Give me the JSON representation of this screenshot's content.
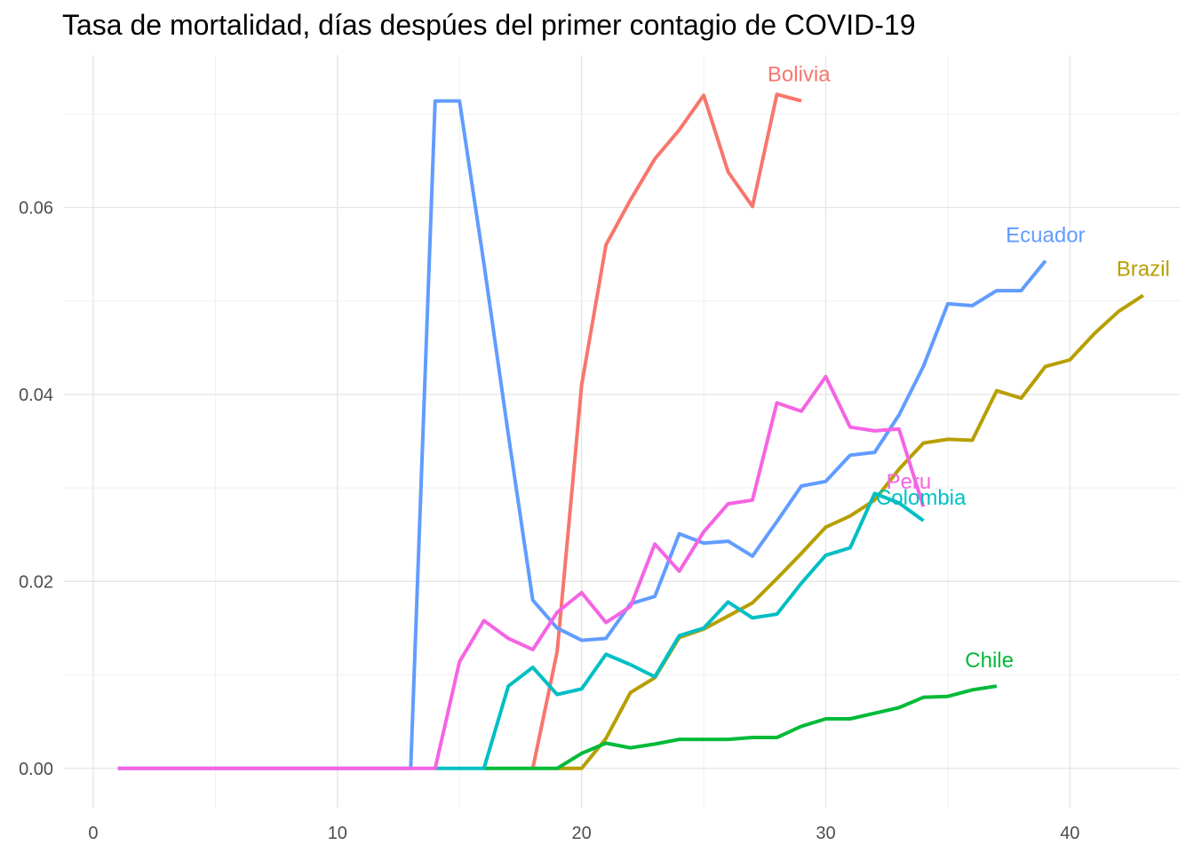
{
  "chart_data": {
    "type": "line",
    "title": "Tasa de mortalidad, días despúes del primer contagio de COVID-19",
    "xlabel": "",
    "ylabel": "",
    "xlim": [
      -1.2,
      44.5
    ],
    "ylim": [
      -0.0043,
      0.0763
    ],
    "x_ticks": [
      0,
      10,
      20,
      30,
      40
    ],
    "x_tick_labels": [
      "0",
      "10",
      "20",
      "30",
      "40"
    ],
    "y_ticks": [
      0.0,
      0.02,
      0.04,
      0.06
    ],
    "y_tick_labels": [
      "0.00",
      "0.02",
      "0.04",
      "0.06"
    ],
    "grid": true,
    "legend": "none (direct labels at line ends)",
    "series": [
      {
        "name": "Bolivia",
        "color": "#F8766D",
        "x": [
          18,
          19,
          20,
          21,
          22,
          23,
          24,
          25,
          26,
          27,
          28,
          29
        ],
        "y": [
          0.0,
          0.0125,
          0.041,
          0.056,
          0.0608,
          0.0652,
          0.0683,
          0.072,
          0.0638,
          0.0601,
          0.0721,
          0.0714
        ],
        "label_x": 28.9,
        "label_y": 0.0735
      },
      {
        "name": "Brazil",
        "color": "#B79F00",
        "x": [
          19,
          20,
          21,
          22,
          23,
          24,
          25,
          26,
          27,
          28,
          29,
          30,
          31,
          32,
          33,
          34,
          35,
          36,
          37,
          38,
          39,
          40,
          41,
          42,
          43
        ],
        "y": [
          0.0,
          0.0,
          0.0032,
          0.0081,
          0.0097,
          0.014,
          0.0149,
          0.0163,
          0.0177,
          0.0203,
          0.023,
          0.0258,
          0.027,
          0.0287,
          0.032,
          0.0348,
          0.0352,
          0.0351,
          0.0404,
          0.0396,
          0.043,
          0.0437,
          0.0465,
          0.0489,
          0.0506
        ],
        "label_x": 43.0,
        "label_y": 0.0527
      },
      {
        "name": "Chile",
        "color": "#00BA38",
        "x": [
          16,
          17,
          18,
          19,
          20,
          21,
          22,
          23,
          24,
          25,
          26,
          27,
          28,
          29,
          30,
          31,
          32,
          33,
          34,
          35,
          36,
          37
        ],
        "y": [
          0.0,
          0.0,
          0.0,
          0.0,
          0.0016,
          0.0027,
          0.0022,
          0.0026,
          0.0031,
          0.0031,
          0.0031,
          0.0033,
          0.0033,
          0.0045,
          0.0053,
          0.0053,
          0.0059,
          0.0065,
          0.0076,
          0.0077,
          0.0084,
          0.0088
        ],
        "label_x": 36.7,
        "label_y": 0.0108
      },
      {
        "name": "Colombia",
        "color": "#00BFC4",
        "x": [
          14,
          15,
          16,
          17,
          18,
          19,
          20,
          21,
          22,
          23,
          24,
          25,
          26,
          27,
          28,
          29,
          30,
          31,
          32,
          33,
          34
        ],
        "y": [
          0.0,
          0.0,
          0.0,
          0.0088,
          0.0108,
          0.0079,
          0.0085,
          0.0122,
          0.0111,
          0.0098,
          0.0142,
          0.015,
          0.0178,
          0.0161,
          0.0165,
          0.0198,
          0.0228,
          0.0236,
          0.0294,
          0.0284,
          0.0265
        ],
        "label_x": 33.9,
        "label_y": 0.0282
      },
      {
        "name": "Ecuador",
        "color": "#619CFF",
        "x": [
          1,
          2,
          3,
          4,
          5,
          6,
          7,
          8,
          9,
          10,
          11,
          12,
          13,
          14,
          15,
          16,
          17,
          18,
          19,
          20,
          21,
          22,
          23,
          24,
          25,
          26,
          27,
          28,
          29,
          30,
          31,
          32,
          33,
          34,
          35,
          36,
          37,
          38,
          39
        ],
        "y": [
          0.0,
          0.0,
          0.0,
          0.0,
          0.0,
          0.0,
          0.0,
          0.0,
          0.0,
          0.0,
          0.0,
          0.0,
          0.0,
          0.0714,
          0.0714,
          0.054,
          0.0357,
          0.018,
          0.015,
          0.0137,
          0.0139,
          0.0176,
          0.0184,
          0.0251,
          0.0241,
          0.0243,
          0.0227,
          0.0264,
          0.0302,
          0.0307,
          0.0335,
          0.0338,
          0.0378,
          0.043,
          0.0497,
          0.0495,
          0.0511,
          0.0511,
          0.0543
        ],
        "label_x": 39.0,
        "label_y": 0.0563
      },
      {
        "name": "Peru",
        "color": "#F564E3",
        "x": [
          1,
          2,
          3,
          4,
          5,
          6,
          7,
          8,
          9,
          10,
          11,
          12,
          13,
          14,
          15,
          16,
          17,
          18,
          19,
          20,
          21,
          22,
          23,
          24,
          25,
          26,
          27,
          28,
          29,
          30,
          31,
          32,
          33,
          34
        ],
        "y": [
          0.0,
          0.0,
          0.0,
          0.0,
          0.0,
          0.0,
          0.0,
          0.0,
          0.0,
          0.0,
          0.0,
          0.0,
          0.0,
          0.0,
          0.0114,
          0.0158,
          0.0139,
          0.0127,
          0.0167,
          0.0188,
          0.0156,
          0.0173,
          0.024,
          0.0211,
          0.0253,
          0.0283,
          0.0287,
          0.0391,
          0.0382,
          0.0419,
          0.0365,
          0.0361,
          0.0363,
          0.028
        ],
        "label_x": 33.4,
        "label_y": 0.0299
      }
    ]
  }
}
